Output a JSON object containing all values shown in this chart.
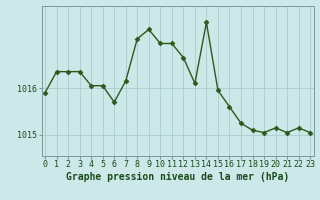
{
  "hours": [
    0,
    1,
    2,
    3,
    4,
    5,
    6,
    7,
    8,
    9,
    10,
    11,
    12,
    13,
    14,
    15,
    16,
    17,
    18,
    19,
    20,
    21,
    22,
    23
  ],
  "pressure": [
    1015.9,
    1016.35,
    1016.35,
    1016.35,
    1016.05,
    1016.05,
    1015.7,
    1016.15,
    1017.05,
    1017.25,
    1016.95,
    1016.95,
    1016.65,
    1016.1,
    1017.4,
    1015.95,
    1015.6,
    1015.25,
    1015.1,
    1015.05,
    1015.15,
    1015.05,
    1015.15,
    1015.05
  ],
  "line_color": "#2d5a1b",
  "marker": "D",
  "marker_size": 2.5,
  "bg_color": "#cce8e8",
  "grid_color": "#aacccc",
  "ylabel_ticks": [
    1015,
    1016
  ],
  "xlabel": "Graphe pression niveau de la mer (hPa)",
  "xlabel_color": "#1a4a1a",
  "xlabel_fontsize": 7,
  "tick_fontsize": 6,
  "ylim": [
    1014.55,
    1017.75
  ],
  "xlim": [
    -0.3,
    23.3
  ],
  "figsize": [
    3.2,
    2.0
  ],
  "dpi": 100
}
